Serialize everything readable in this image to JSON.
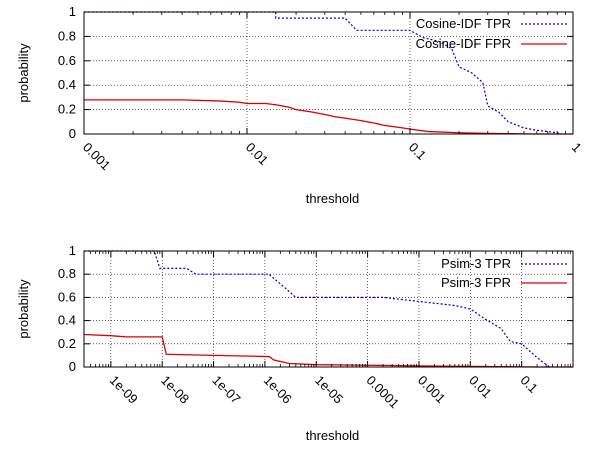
{
  "chart_data": [
    {
      "type": "line",
      "xscale": "log",
      "xlabel": "threshold",
      "ylabel": "probability",
      "xlim": [
        0.001,
        1
      ],
      "ylim": [
        0,
        1
      ],
      "xticks": [
        0.001,
        0.01,
        0.1,
        1
      ],
      "xtick_labels": [
        "0.001",
        "0.01",
        "0.1",
        "1"
      ],
      "yticks": [
        0,
        0.2,
        0.4,
        0.6,
        0.8,
        1
      ],
      "ytick_labels": [
        "0",
        "0.2",
        "0.4",
        "0.6",
        "0.8",
        "1"
      ],
      "grid": true,
      "legend_position": "top-right",
      "series": [
        {
          "name": "Cosine-IDF TPR",
          "color": "#0000cc",
          "dash": "dotted",
          "points": [
            [
              0.001,
              1.0
            ],
            [
              0.015,
              1.0
            ],
            [
              0.015,
              0.95
            ],
            [
              0.04,
              0.95
            ],
            [
              0.047,
              0.85
            ],
            [
              0.1,
              0.85
            ],
            [
              0.12,
              0.79
            ],
            [
              0.15,
              0.76
            ],
            [
              0.18,
              0.7
            ],
            [
              0.2,
              0.55
            ],
            [
              0.24,
              0.5
            ],
            [
              0.28,
              0.42
            ],
            [
              0.3,
              0.23
            ],
            [
              0.35,
              0.18
            ],
            [
              0.4,
              0.1
            ],
            [
              0.5,
              0.05
            ],
            [
              0.6,
              0.03
            ],
            [
              0.7,
              0.02
            ],
            [
              0.8,
              0.01
            ],
            [
              0.85,
              0.0
            ]
          ]
        },
        {
          "name": "Cosine-IDF FPR",
          "color": "#dd0000",
          "dash": "solid",
          "points": [
            [
              0.001,
              0.28
            ],
            [
              0.004,
              0.28
            ],
            [
              0.007,
              0.27
            ],
            [
              0.009,
              0.26
            ],
            [
              0.01,
              0.25
            ],
            [
              0.013,
              0.25
            ],
            [
              0.015,
              0.24
            ],
            [
              0.018,
              0.22
            ],
            [
              0.02,
              0.2
            ],
            [
              0.025,
              0.18
            ],
            [
              0.03,
              0.16
            ],
            [
              0.035,
              0.14
            ],
            [
              0.04,
              0.13
            ],
            [
              0.05,
              0.11
            ],
            [
              0.06,
              0.09
            ],
            [
              0.07,
              0.07
            ],
            [
              0.09,
              0.05
            ],
            [
              0.1,
              0.04
            ],
            [
              0.13,
              0.02
            ],
            [
              0.2,
              0.01
            ],
            [
              0.3,
              0.005
            ],
            [
              0.6,
              0.0
            ],
            [
              1.0,
              0.0
            ]
          ]
        }
      ]
    },
    {
      "type": "line",
      "xscale": "log",
      "xlabel": "threshold",
      "ylabel": "probability",
      "xlim": [
        3e-10,
        1
      ],
      "ylim": [
        0,
        1
      ],
      "xticks": [
        1e-09,
        1e-08,
        1e-07,
        1e-06,
        1e-05,
        0.0001,
        0.001,
        0.01,
        0.1
      ],
      "xtick_labels": [
        "1e-09",
        "1e-08",
        "1e-07",
        "1e-06",
        "1e-05",
        "0.0001",
        "0.001",
        "0.01",
        "0.1"
      ],
      "yticks": [
        0,
        0.2,
        0.4,
        0.6,
        0.8,
        1
      ],
      "ytick_labels": [
        "0",
        "0.2",
        "0.4",
        "0.6",
        "0.8",
        "1"
      ],
      "grid": true,
      "legend_position": "top-right",
      "series": [
        {
          "name": "Psim-3 TPR",
          "color": "#0000cc",
          "dash": "dotted",
          "points": [
            [
              3e-10,
              1.0
            ],
            [
              7e-09,
              1.0
            ],
            [
              9e-09,
              0.85
            ],
            [
              3e-08,
              0.85
            ],
            [
              4.5e-08,
              0.8
            ],
            [
              1.2e-06,
              0.8
            ],
            [
              2.5e-06,
              0.68
            ],
            [
              4e-06,
              0.6
            ],
            [
              0.0002,
              0.6
            ],
            [
              0.0008,
              0.57
            ],
            [
              0.005,
              0.53
            ],
            [
              0.01,
              0.5
            ],
            [
              0.02,
              0.41
            ],
            [
              0.04,
              0.33
            ],
            [
              0.06,
              0.22
            ],
            [
              0.1,
              0.2
            ],
            [
              0.2,
              0.08
            ],
            [
              0.35,
              0.0
            ]
          ]
        },
        {
          "name": "Psim-3 FPR",
          "color": "#dd0000",
          "dash": "solid",
          "points": [
            [
              3e-10,
              0.28
            ],
            [
              1e-09,
              0.27
            ],
            [
              2e-09,
              0.26
            ],
            [
              5e-09,
              0.26
            ],
            [
              1e-08,
              0.26
            ],
            [
              1.2e-08,
              0.11
            ],
            [
              1e-07,
              0.1
            ],
            [
              1.2e-06,
              0.09
            ],
            [
              1.5e-06,
              0.06
            ],
            [
              3e-06,
              0.03
            ],
            [
              1e-05,
              0.02
            ],
            [
              0.0001,
              0.015
            ],
            [
              0.001,
              0.01
            ],
            [
              0.01,
              0.005
            ],
            [
              0.05,
              0.003
            ],
            [
              0.2,
              0.0
            ],
            [
              1.0,
              0.0
            ]
          ]
        }
      ]
    }
  ]
}
